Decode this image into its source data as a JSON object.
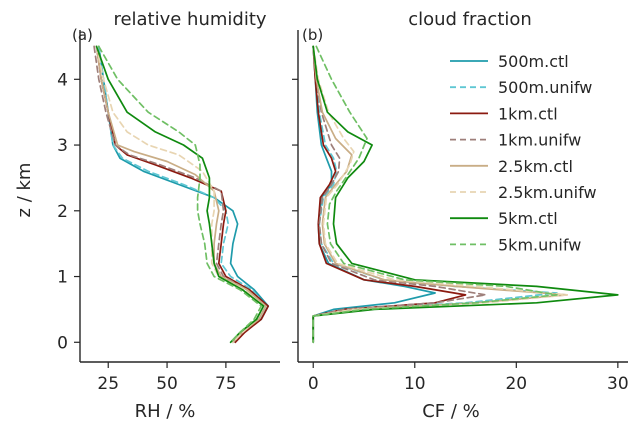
{
  "chart_data": [
    {
      "type": "line",
      "panel_letter": "(a)",
      "title": "relative humidity",
      "xlabel": "RH / %",
      "ylabel": "z / km",
      "xlim": [
        13,
        98
      ],
      "ylim": [
        -0.3,
        4.75
      ],
      "xticks": [
        25,
        50,
        75
      ],
      "yticks": [
        0,
        1,
        2,
        3,
        4
      ],
      "grid": false,
      "series": [
        {
          "name": "500m.ctl",
          "color": "#1f9bab",
          "dash": "solid",
          "x": [
            21,
            23,
            25,
            27,
            30,
            40,
            55,
            70,
            78,
            80,
            78,
            77,
            80,
            87,
            93,
            90,
            82,
            78
          ],
          "y": [
            4.5,
            4.0,
            3.5,
            3.0,
            2.8,
            2.6,
            2.4,
            2.2,
            2.0,
            1.8,
            1.5,
            1.2,
            1.0,
            0.8,
            0.55,
            0.35,
            0.15,
            0.0
          ]
        },
        {
          "name": "500m.unifw",
          "color": "#5fc7d3",
          "dash": "dashed",
          "x": [
            21,
            23,
            25,
            27,
            31,
            42,
            57,
            70,
            75,
            76,
            74,
            73,
            77,
            86,
            92,
            89,
            82,
            78
          ],
          "y": [
            4.5,
            4.0,
            3.5,
            3.0,
            2.8,
            2.6,
            2.4,
            2.2,
            2.0,
            1.8,
            1.5,
            1.2,
            1.0,
            0.8,
            0.55,
            0.35,
            0.15,
            0.0
          ]
        },
        {
          "name": "1km.ctl",
          "color": "#8b1a10",
          "dash": "solid",
          "x": [
            20,
            22,
            25,
            28,
            33,
            45,
            60,
            73,
            75,
            74,
            73,
            72,
            75,
            85,
            93,
            90,
            83,
            79
          ],
          "y": [
            4.5,
            4.0,
            3.5,
            3.0,
            2.85,
            2.7,
            2.5,
            2.3,
            2.0,
            1.8,
            1.5,
            1.2,
            1.0,
            0.8,
            0.55,
            0.35,
            0.15,
            0.0
          ]
        },
        {
          "name": "1km.unifw",
          "color": "#9e7f7a",
          "dash": "dashed",
          "x": [
            19,
            21,
            24,
            28,
            34,
            47,
            62,
            73,
            74,
            73,
            72,
            71,
            74,
            84,
            92,
            89,
            82,
            78
          ],
          "y": [
            4.5,
            4.0,
            3.5,
            3.0,
            2.85,
            2.7,
            2.5,
            2.3,
            2.0,
            1.8,
            1.5,
            1.2,
            1.0,
            0.8,
            0.55,
            0.35,
            0.15,
            0.0
          ]
        },
        {
          "name": "2.5km.ctl",
          "color": "#c9ad86",
          "dash": "solid",
          "x": [
            20,
            22,
            25,
            29,
            36,
            50,
            62,
            70,
            72,
            71,
            70,
            70,
            73,
            84,
            92,
            89,
            82,
            78
          ],
          "y": [
            4.5,
            4.0,
            3.5,
            3.0,
            2.9,
            2.75,
            2.55,
            2.3,
            2.0,
            1.8,
            1.5,
            1.2,
            1.0,
            0.8,
            0.55,
            0.35,
            0.15,
            0.0
          ]
        },
        {
          "name": "2.5km.unifw",
          "color": "#e8d5b2",
          "dash": "dashed",
          "x": [
            20,
            23,
            27,
            33,
            42,
            55,
            65,
            70,
            70,
            69,
            69,
            69,
            72,
            83,
            91,
            88,
            82,
            78
          ],
          "y": [
            4.5,
            4.0,
            3.5,
            3.2,
            3.0,
            2.85,
            2.6,
            2.3,
            2.0,
            1.8,
            1.5,
            1.2,
            1.0,
            0.8,
            0.55,
            0.35,
            0.15,
            0.0
          ]
        },
        {
          "name": "5km.ctl",
          "color": "#0f8a0f",
          "dash": "solid",
          "x": [
            20,
            25,
            33,
            45,
            57,
            65,
            68,
            68,
            67,
            68,
            69,
            70,
            72,
            82,
            91,
            88,
            81,
            77
          ],
          "y": [
            4.5,
            4.0,
            3.5,
            3.2,
            3.0,
            2.8,
            2.5,
            2.2,
            2.0,
            1.8,
            1.5,
            1.2,
            1.0,
            0.8,
            0.55,
            0.35,
            0.15,
            0.0
          ]
        },
        {
          "name": "5km.unifw",
          "color": "#6fbf64",
          "dash": "dashed",
          "x": [
            21,
            29,
            42,
            55,
            62,
            64,
            64,
            63,
            63,
            64,
            66,
            67,
            70,
            81,
            90,
            87,
            81,
            77
          ],
          "y": [
            4.5,
            4.0,
            3.5,
            3.2,
            3.0,
            2.7,
            2.5,
            2.2,
            2.0,
            1.8,
            1.5,
            1.2,
            1.0,
            0.8,
            0.55,
            0.35,
            0.15,
            0.0
          ]
        }
      ]
    },
    {
      "type": "line",
      "panel_letter": "(b)",
      "title": "cloud fraction",
      "xlabel": "CF / %",
      "ylabel": "",
      "xlim": [
        -1.5,
        31
      ],
      "ylim": [
        -0.3,
        4.75
      ],
      "xticks": [
        0,
        10,
        20,
        30
      ],
      "yticks": [
        0,
        1,
        2,
        3,
        4
      ],
      "grid": false,
      "legend_position": "right",
      "series": [
        {
          "name": "500m.ctl",
          "color": "#1f9bab",
          "dash": "solid",
          "x": [
            0,
            0.2,
            0.4,
            0.8,
            1.3,
            1.8,
            1.8,
            0.8,
            0.5,
            0.6,
            1.5,
            5,
            9,
            12,
            8,
            2,
            0,
            0
          ],
          "y": [
            4.5,
            4.0,
            3.5,
            3.0,
            2.8,
            2.6,
            2.4,
            2.2,
            1.8,
            1.5,
            1.2,
            0.95,
            0.85,
            0.75,
            0.6,
            0.5,
            0.4,
            0.0
          ]
        },
        {
          "name": "500m.unifw",
          "color": "#5fc7d3",
          "dash": "dashed",
          "x": [
            0,
            0.3,
            0.6,
            1.2,
            2.0,
            2.3,
            2.0,
            1.0,
            0.6,
            0.8,
            2,
            7,
            14,
            24,
            15,
            3,
            0,
            0
          ],
          "y": [
            4.5,
            4.0,
            3.5,
            3.0,
            2.8,
            2.6,
            2.4,
            2.2,
            1.8,
            1.5,
            1.2,
            0.95,
            0.85,
            0.75,
            0.6,
            0.5,
            0.4,
            0.0
          ]
        },
        {
          "name": "1km.ctl",
          "color": "#8b1a10",
          "dash": "solid",
          "x": [
            0,
            0.2,
            0.5,
            1.0,
            1.8,
            2.2,
            1.6,
            0.7,
            0.5,
            0.6,
            1.3,
            5,
            10,
            15,
            12,
            3,
            0,
            0
          ],
          "y": [
            4.5,
            4.0,
            3.5,
            3.0,
            2.8,
            2.6,
            2.4,
            2.2,
            1.8,
            1.5,
            1.2,
            0.95,
            0.85,
            0.72,
            0.6,
            0.5,
            0.4,
            0.0
          ]
        },
        {
          "name": "1km.unifw",
          "color": "#9e7f7a",
          "dash": "dashed",
          "x": [
            0,
            0.3,
            0.8,
            1.8,
            2.6,
            2.5,
            1.8,
            0.9,
            0.6,
            0.8,
            1.8,
            6,
            12,
            17,
            12,
            3,
            0,
            0
          ],
          "y": [
            4.5,
            4.0,
            3.5,
            3.0,
            2.8,
            2.6,
            2.4,
            2.2,
            1.8,
            1.5,
            1.2,
            0.95,
            0.85,
            0.72,
            0.6,
            0.5,
            0.4,
            0.0
          ]
        },
        {
          "name": "2.5km.ctl",
          "color": "#c9ad86",
          "dash": "solid",
          "x": [
            0,
            0.3,
            0.9,
            2.2,
            3.8,
            3.3,
            2.2,
            1.2,
            0.9,
            1.1,
            2.2,
            7,
            14,
            25,
            16,
            4,
            0,
            0
          ],
          "y": [
            4.5,
            4.0,
            3.5,
            3.1,
            2.85,
            2.6,
            2.4,
            2.2,
            1.8,
            1.5,
            1.2,
            0.95,
            0.85,
            0.72,
            0.6,
            0.5,
            0.4,
            0.0
          ]
        },
        {
          "name": "2.5km.unifw",
          "color": "#e8d5b2",
          "dash": "dashed",
          "x": [
            0,
            0.5,
            1.5,
            3.0,
            4.0,
            3.6,
            2.4,
            1.3,
            1.0,
            1.2,
            2.4,
            8,
            16,
            25,
            17,
            4,
            0,
            0
          ],
          "y": [
            4.5,
            4.0,
            3.5,
            3.1,
            2.9,
            2.7,
            2.4,
            2.2,
            1.8,
            1.5,
            1.2,
            0.95,
            0.85,
            0.72,
            0.6,
            0.5,
            0.4,
            0.0
          ]
        },
        {
          "name": "5km.ctl",
          "color": "#0f8a0f",
          "dash": "solid",
          "x": [
            0,
            0.4,
            1.4,
            3.4,
            5.8,
            5.0,
            3.4,
            2.2,
            2.0,
            2.3,
            3.8,
            10,
            22,
            30,
            22,
            6,
            0,
            0
          ],
          "y": [
            4.5,
            4.0,
            3.5,
            3.2,
            3.0,
            2.75,
            2.5,
            2.2,
            1.8,
            1.5,
            1.2,
            0.95,
            0.85,
            0.72,
            0.6,
            0.5,
            0.4,
            0.0
          ]
        },
        {
          "name": "5km.unifw",
          "color": "#6fbf64",
          "dash": "dashed",
          "x": [
            0.3,
            1.8,
            3.6,
            5.3,
            4.5,
            3.2,
            2.3,
            1.6,
            1.4,
            1.7,
            3.0,
            9,
            19,
            24,
            16,
            5,
            0,
            0
          ],
          "y": [
            4.5,
            4.0,
            3.5,
            3.1,
            2.8,
            2.5,
            2.3,
            2.1,
            1.8,
            1.5,
            1.2,
            0.95,
            0.85,
            0.72,
            0.6,
            0.5,
            0.4,
            0.0
          ]
        }
      ]
    }
  ]
}
